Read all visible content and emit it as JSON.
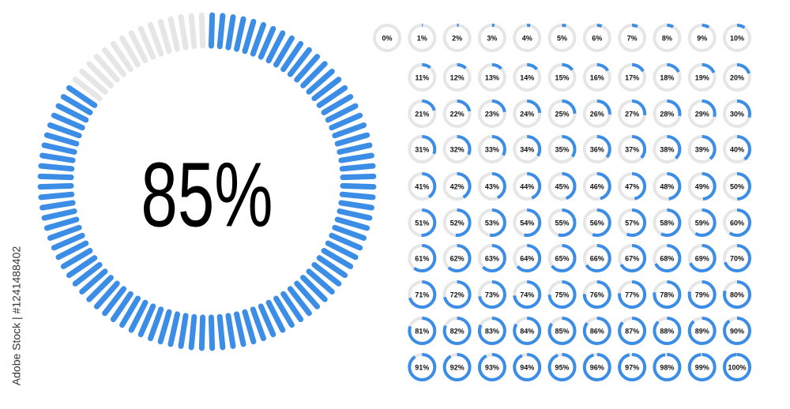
{
  "main": {
    "value": 85,
    "label": "85%"
  },
  "watermark": "Adobe Stock | #1241488402",
  "circles": [
    {
      "value": 0,
      "label": "0%"
    },
    {
      "value": 1,
      "label": "1%"
    },
    {
      "value": 2,
      "label": "2%"
    },
    {
      "value": 3,
      "label": "3%"
    },
    {
      "value": 4,
      "label": "4%"
    },
    {
      "value": 5,
      "label": "5%"
    },
    {
      "value": 6,
      "label": "6%"
    },
    {
      "value": 7,
      "label": "7%"
    },
    {
      "value": 8,
      "label": "8%"
    },
    {
      "value": 9,
      "label": "9%"
    },
    {
      "value": 10,
      "label": "10%"
    },
    {
      "value": 11,
      "label": "11%"
    },
    {
      "value": 12,
      "label": "12%"
    },
    {
      "value": 13,
      "label": "13%"
    },
    {
      "value": 14,
      "label": "14%"
    },
    {
      "value": 15,
      "label": "15%"
    },
    {
      "value": 16,
      "label": "16%"
    },
    {
      "value": 17,
      "label": "17%"
    },
    {
      "value": 18,
      "label": "18%"
    },
    {
      "value": 19,
      "label": "19%"
    },
    {
      "value": 20,
      "label": "20%"
    },
    {
      "value": 21,
      "label": "21%"
    },
    {
      "value": 22,
      "label": "22%"
    },
    {
      "value": 23,
      "label": "23%"
    },
    {
      "value": 24,
      "label": "24%"
    },
    {
      "value": 25,
      "label": "25%"
    },
    {
      "value": 26,
      "label": "26%"
    },
    {
      "value": 27,
      "label": "27%"
    },
    {
      "value": 28,
      "label": "28%"
    },
    {
      "value": 29,
      "label": "29%"
    },
    {
      "value": 30,
      "label": "30%"
    },
    {
      "value": 31,
      "label": "31%"
    },
    {
      "value": 32,
      "label": "32%"
    },
    {
      "value": 33,
      "label": "33%"
    },
    {
      "value": 34,
      "label": "34%"
    },
    {
      "value": 35,
      "label": "35%"
    },
    {
      "value": 36,
      "label": "36%"
    },
    {
      "value": 37,
      "label": "37%"
    },
    {
      "value": 38,
      "label": "38%"
    },
    {
      "value": 39,
      "label": "39%"
    },
    {
      "value": 40,
      "label": "40%"
    },
    {
      "value": 41,
      "label": "41%"
    },
    {
      "value": 42,
      "label": "42%"
    },
    {
      "value": 43,
      "label": "43%"
    },
    {
      "value": 44,
      "label": "44%"
    },
    {
      "value": 45,
      "label": "45%"
    },
    {
      "value": 46,
      "label": "46%"
    },
    {
      "value": 47,
      "label": "47%"
    },
    {
      "value": 48,
      "label": "48%"
    },
    {
      "value": 49,
      "label": "49%"
    },
    {
      "value": 50,
      "label": "50%"
    },
    {
      "value": 51,
      "label": "51%"
    },
    {
      "value": 52,
      "label": "52%"
    },
    {
      "value": 53,
      "label": "53%"
    },
    {
      "value": 54,
      "label": "54%"
    },
    {
      "value": 55,
      "label": "55%"
    },
    {
      "value": 56,
      "label": "56%"
    },
    {
      "value": 57,
      "label": "57%"
    },
    {
      "value": 58,
      "label": "58%"
    },
    {
      "value": 59,
      "label": "59%"
    },
    {
      "value": 60,
      "label": "60%"
    },
    {
      "value": 61,
      "label": "61%"
    },
    {
      "value": 62,
      "label": "62%"
    },
    {
      "value": 63,
      "label": "63%"
    },
    {
      "value": 64,
      "label": "64%"
    },
    {
      "value": 65,
      "label": "65%"
    },
    {
      "value": 66,
      "label": "66%"
    },
    {
      "value": 67,
      "label": "67%"
    },
    {
      "value": 68,
      "label": "68%"
    },
    {
      "value": 69,
      "label": "69%"
    },
    {
      "value": 70,
      "label": "70%"
    },
    {
      "value": 71,
      "label": "71%"
    },
    {
      "value": 72,
      "label": "72%"
    },
    {
      "value": 73,
      "label": "73%"
    },
    {
      "value": 74,
      "label": "74%"
    },
    {
      "value": 75,
      "label": "75%"
    },
    {
      "value": 76,
      "label": "76%"
    },
    {
      "value": 77,
      "label": "77%"
    },
    {
      "value": 78,
      "label": "78%"
    },
    {
      "value": 79,
      "label": "79%"
    },
    {
      "value": 80,
      "label": "80%"
    },
    {
      "value": 81,
      "label": "81%"
    },
    {
      "value": 82,
      "label": "82%"
    },
    {
      "value": 83,
      "label": "83%"
    },
    {
      "value": 84,
      "label": "84%"
    },
    {
      "value": 85,
      "label": "85%"
    },
    {
      "value": 86,
      "label": "86%"
    },
    {
      "value": 87,
      "label": "87%"
    },
    {
      "value": 88,
      "label": "88%"
    },
    {
      "value": 89,
      "label": "89%"
    },
    {
      "value": 90,
      "label": "90%"
    },
    {
      "value": 91,
      "label": "91%"
    },
    {
      "value": 92,
      "label": "92%"
    },
    {
      "value": 93,
      "label": "93%"
    },
    {
      "value": 94,
      "label": "94%"
    },
    {
      "value": 95,
      "label": "95%"
    },
    {
      "value": 96,
      "label": "96%"
    },
    {
      "value": 97,
      "label": "97%"
    },
    {
      "value": 98,
      "label": "98%"
    },
    {
      "value": 99,
      "label": "99%"
    },
    {
      "value": 100,
      "label": "100%"
    }
  ]
}
